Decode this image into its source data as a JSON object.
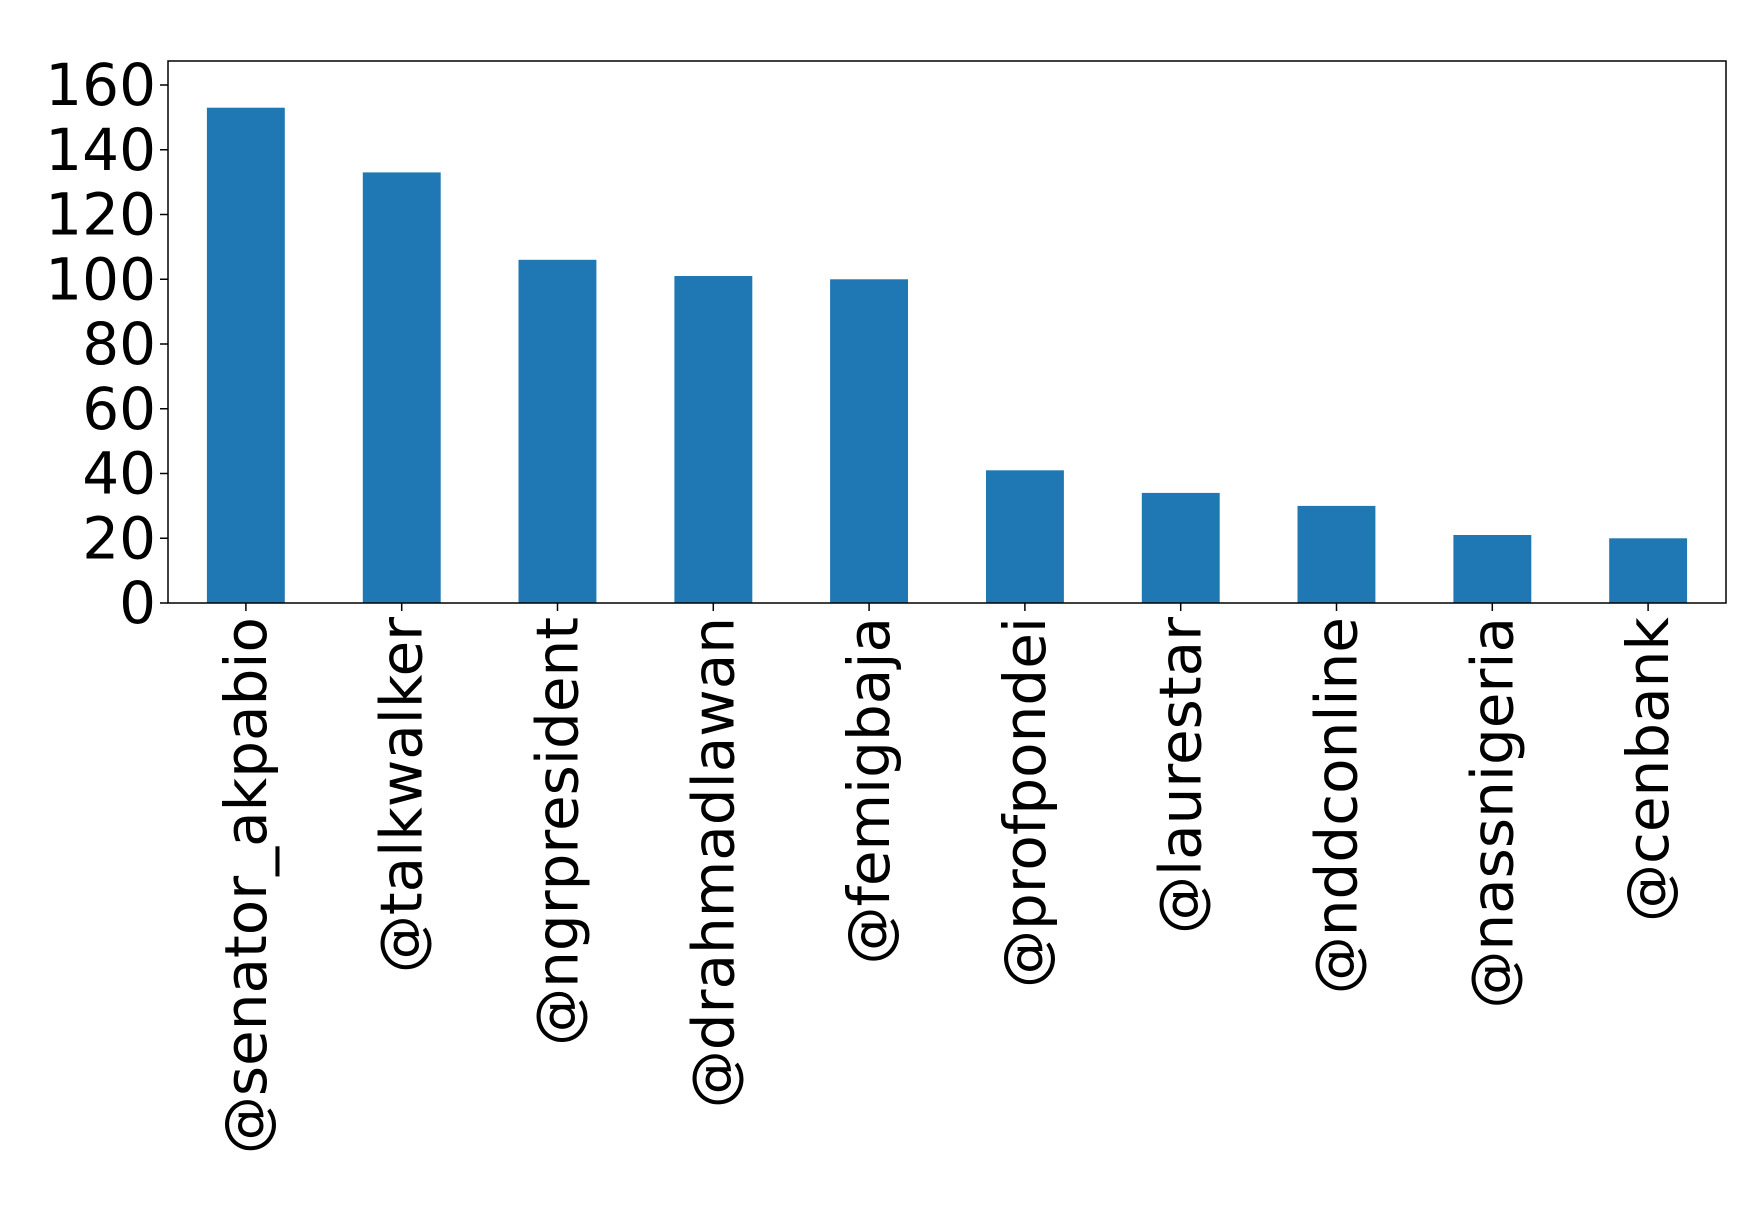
{
  "chart_data": {
    "type": "bar",
    "categories": [
      "@senator_akpabio",
      "@talkwalker",
      "@ngrpresident",
      "@drahmadlawan",
      "@femigbaja",
      "@profpondei",
      "@laurestar",
      "@nddconline",
      "@nassnigeria",
      "@cenbank"
    ],
    "values": [
      153,
      133,
      106,
      101,
      100,
      41,
      34,
      30,
      21,
      20
    ],
    "ylim": [
      0,
      160
    ],
    "yticks": [
      "0",
      "20",
      "40",
      "60",
      "80",
      "100",
      "120",
      "140",
      "160"
    ],
    "bar_color": "#1f77b4",
    "grid": false,
    "legend": "none",
    "title": "",
    "xlabel": "",
    "ylabel": ""
  }
}
